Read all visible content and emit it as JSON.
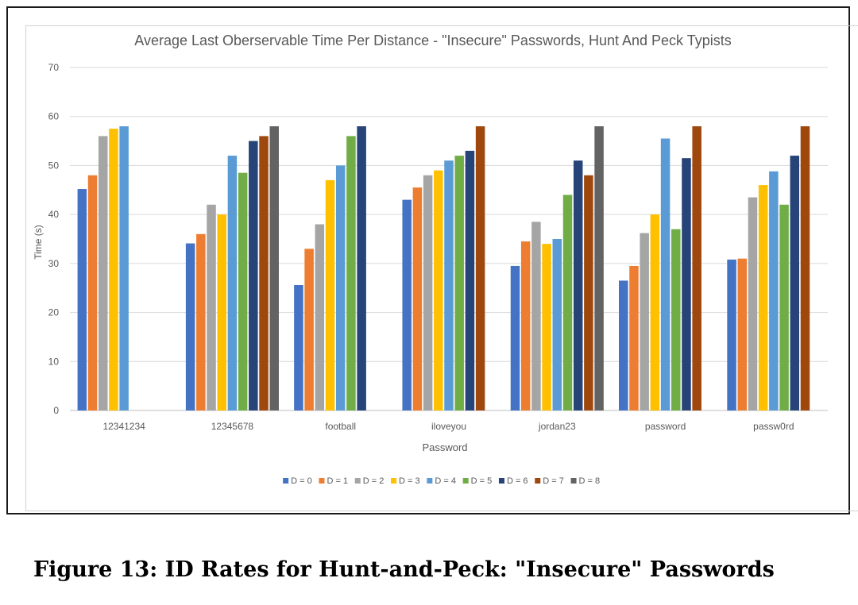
{
  "chart_data": {
    "type": "bar",
    "title": "Average Last Oberservable Time Per Distance - \"Insecure\" Passwords, Hunt And Peck Typists",
    "xlabel": "Password",
    "ylabel": "Time (s)",
    "ylim": [
      0,
      70
    ],
    "yticks": [
      0,
      10,
      20,
      30,
      40,
      50,
      60,
      70
    ],
    "grid": true,
    "legend_position": "bottom",
    "categories": [
      "12341234",
      "12345678",
      "football",
      "iloveyou",
      "jordan23",
      "password",
      "passw0rd"
    ],
    "series": [
      {
        "name": "D = 0",
        "color": "#4472c4",
        "values": [
          45.2,
          34.1,
          25.6,
          43,
          29.5,
          26.5,
          30.8
        ]
      },
      {
        "name": "D = 1",
        "color": "#ed7d31",
        "values": [
          48,
          36,
          33,
          45.5,
          34.5,
          29.5,
          31
        ]
      },
      {
        "name": "D = 2",
        "color": "#a5a5a5",
        "values": [
          56,
          42,
          38,
          48,
          38.5,
          36.2,
          43.5
        ]
      },
      {
        "name": "D = 3",
        "color": "#ffc000",
        "values": [
          57.5,
          40,
          47,
          49,
          34,
          40,
          46
        ]
      },
      {
        "name": "D = 4",
        "color": "#5b9bd5",
        "values": [
          58,
          52,
          50,
          51,
          35,
          55.5,
          48.8
        ]
      },
      {
        "name": "D = 5",
        "color": "#70ad47",
        "values": [
          null,
          48.5,
          56,
          52,
          44,
          37,
          42
        ]
      },
      {
        "name": "D = 6",
        "color": "#264478",
        "values": [
          null,
          55,
          58,
          53,
          51,
          51.5,
          52
        ]
      },
      {
        "name": "D = 7",
        "color": "#9e480e",
        "values": [
          null,
          56,
          null,
          58,
          48,
          58,
          58
        ]
      },
      {
        "name": "D = 8",
        "color": "#636363",
        "values": [
          null,
          58,
          null,
          null,
          58,
          null,
          null
        ]
      }
    ]
  },
  "caption": "Figure 13: ID Rates for Hunt-and-Peck: \"Insecure\" Passwords"
}
